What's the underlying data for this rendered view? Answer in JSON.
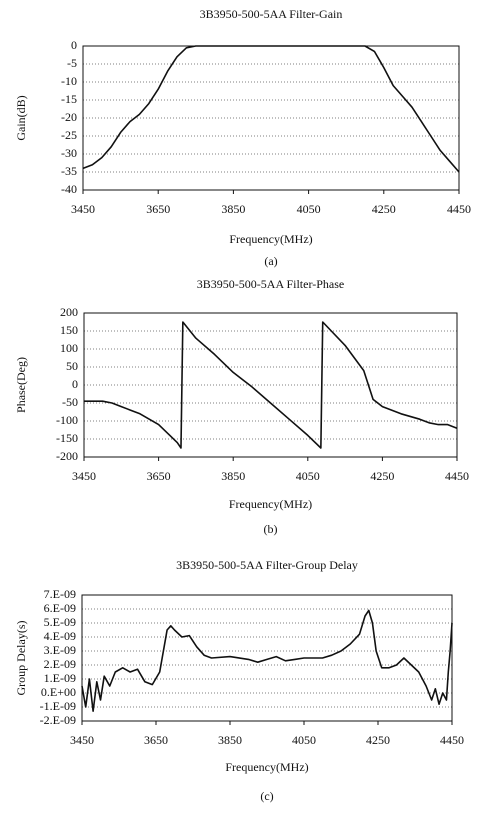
{
  "chart_data": [
    {
      "type": "line",
      "title": "3B3950-500-5AA Filter-Gain",
      "xlabel": "Frequency(MHz)",
      "ylabel": "Gain(dB)",
      "caption": "(a)",
      "xlim": [
        3450,
        4450
      ],
      "xticks": [
        3450,
        3650,
        3850,
        4050,
        4250,
        4450
      ],
      "ylim": [
        -40,
        0
      ],
      "yticks": [
        0,
        -5,
        -10,
        -15,
        -20,
        -25,
        -30,
        -35,
        -40
      ],
      "grid": true,
      "series": [
        {
          "name": "Gain",
          "color": "#111111",
          "x": [
            3450,
            3475,
            3500,
            3525,
            3550,
            3575,
            3600,
            3625,
            3650,
            3675,
            3700,
            3725,
            3750,
            3775,
            3800,
            3825,
            3850,
            3875,
            3900,
            3925,
            3950,
            3975,
            4000,
            4025,
            4050,
            4075,
            4100,
            4125,
            4150,
            4175,
            4200,
            4225,
            4250,
            4275,
            4300,
            4325,
            4350,
            4375,
            4400,
            4425,
            4450
          ],
          "values": [
            -34,
            -33,
            -31,
            -28,
            -24,
            -21,
            -19,
            -16,
            -12,
            -7,
            -3,
            -0.5,
            0,
            0,
            0,
            0,
            0,
            0,
            0,
            0,
            0,
            0,
            0,
            0,
            0,
            0,
            0,
            0,
            0,
            0,
            0,
            -1.5,
            -6,
            -11,
            -14,
            -17,
            -21,
            -25,
            -29,
            -32,
            -35
          ]
        }
      ]
    },
    {
      "type": "line",
      "title": "3B3950-500-5AA Filter-Phase",
      "xlabel": "Frequency(MHz)",
      "ylabel": "Phase(Deg)",
      "caption": "(b)",
      "xlim": [
        3450,
        4450
      ],
      "xticks": [
        3450,
        3650,
        3850,
        4050,
        4250,
        4450
      ],
      "ylim": [
        -200,
        200
      ],
      "yticks": [
        200,
        150,
        100,
        50,
        0,
        -50,
        -100,
        -150,
        -200
      ],
      "grid": true,
      "series": [
        {
          "name": "Phase",
          "color": "#111111",
          "x": [
            3450,
            3500,
            3525,
            3550,
            3575,
            3600,
            3625,
            3650,
            3675,
            3700,
            3710,
            3715,
            3750,
            3800,
            3850,
            3900,
            3950,
            4000,
            4050,
            4085,
            4090,
            4150,
            4200,
            4225,
            4250,
            4300,
            4350,
            4375,
            4400,
            4425,
            4450
          ],
          "values": [
            -45,
            -45,
            -50,
            -60,
            -70,
            -80,
            -95,
            -110,
            -135,
            -160,
            -175,
            175,
            130,
            85,
            35,
            -5,
            -50,
            -95,
            -140,
            -175,
            175,
            110,
            40,
            -40,
            -60,
            -80,
            -95,
            -105,
            -110,
            -110,
            -120
          ]
        }
      ]
    },
    {
      "type": "line",
      "title": "3B3950-500-5AA Filter-Group Delay",
      "xlabel": "Frequency(MHz)",
      "ylabel": "Group Delay(s)",
      "caption": "(c)",
      "xlim": [
        3450,
        4450
      ],
      "xticks": [
        3450,
        3650,
        3850,
        4050,
        4250,
        4450
      ],
      "ylim": [
        -2e-09,
        7e-09
      ],
      "yticks": [
        {
          "value": 7e-09,
          "label": "7.E-09"
        },
        {
          "value": 6e-09,
          "label": "6.E-09"
        },
        {
          "value": 5e-09,
          "label": "5.E-09"
        },
        {
          "value": 4e-09,
          "label": "4.E-09"
        },
        {
          "value": 3e-09,
          "label": "3.E-09"
        },
        {
          "value": 2e-09,
          "label": "2.E-09"
        },
        {
          "value": 1e-09,
          "label": "1.E-09"
        },
        {
          "value": 0,
          "label": "0.E+00"
        },
        {
          "value": -1e-09,
          "label": "-1.E-09"
        },
        {
          "value": -2e-09,
          "label": "-2.E-09"
        }
      ],
      "grid": true,
      "series": [
        {
          "name": "Group Delay",
          "color": "#111111",
          "x": [
            3450,
            3460,
            3470,
            3480,
            3490,
            3500,
            3510,
            3525,
            3540,
            3560,
            3580,
            3600,
            3620,
            3640,
            3660,
            3670,
            3680,
            3690,
            3700,
            3720,
            3740,
            3760,
            3780,
            3800,
            3850,
            3900,
            3925,
            3950,
            3975,
            4000,
            4025,
            4050,
            4075,
            4100,
            4125,
            4150,
            4175,
            4200,
            4215,
            4225,
            4235,
            4245,
            4260,
            4280,
            4300,
            4320,
            4340,
            4360,
            4380,
            4395,
            4405,
            4415,
            4425,
            4435,
            4440,
            4445,
            4450
          ],
          "values": [
            5e-10,
            -1e-09,
            1e-09,
            -1.3e-09,
            8e-10,
            -5e-10,
            1.2e-09,
            5e-10,
            1.5e-09,
            1.8e-09,
            1.5e-09,
            1.7e-09,
            8e-10,
            6e-10,
            1.5e-09,
            3e-09,
            4.5e-09,
            4.8e-09,
            4.5e-09,
            4e-09,
            4.1e-09,
            3.3e-09,
            2.7e-09,
            2.5e-09,
            2.6e-09,
            2.4e-09,
            2.2e-09,
            2.4e-09,
            2.6e-09,
            2.3e-09,
            2.4e-09,
            2.5e-09,
            2.5e-09,
            2.5e-09,
            2.7e-09,
            3e-09,
            3.5e-09,
            4.2e-09,
            5.5e-09,
            5.9e-09,
            5e-09,
            3e-09,
            1.8e-09,
            1.8e-09,
            2e-09,
            2.5e-09,
            2e-09,
            1.5e-09,
            5e-10,
            -5e-10,
            3e-10,
            -8e-10,
            0,
            -5e-10,
            1.5e-09,
            3e-09,
            5e-09
          ]
        }
      ]
    }
  ]
}
